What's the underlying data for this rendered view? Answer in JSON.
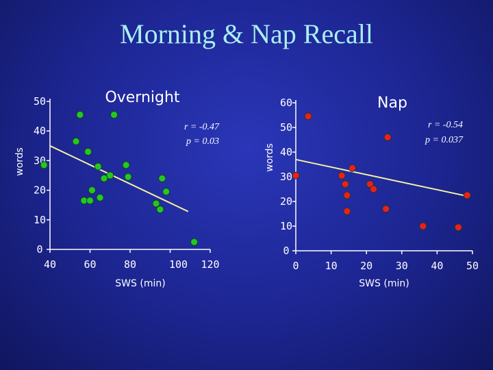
{
  "title": "Morning & Nap Recall",
  "chart_data": [
    {
      "type": "scatter",
      "title": "Overnight",
      "xlabel": "SWS (min)",
      "ylabel": "words",
      "xlim": [
        40,
        120
      ],
      "ylim": [
        0,
        50
      ],
      "xticks": [
        40,
        60,
        80,
        100,
        120
      ],
      "yticks": [
        0,
        10,
        20,
        30,
        40,
        50
      ],
      "point_color": "#22c822",
      "annotation_r": "r = -0.47",
      "annotation_p": "p = 0.03",
      "trendline": {
        "x": [
          40,
          109
        ],
        "y": [
          35,
          12.8
        ]
      },
      "points": [
        {
          "x": 37,
          "y": 28.5
        },
        {
          "x": 55,
          "y": 45.5
        },
        {
          "x": 53,
          "y": 36.5
        },
        {
          "x": 59,
          "y": 33.0
        },
        {
          "x": 72,
          "y": 45.5
        },
        {
          "x": 64,
          "y": 28.0
        },
        {
          "x": 70,
          "y": 25.0
        },
        {
          "x": 67,
          "y": 24.0
        },
        {
          "x": 78,
          "y": 28.5
        },
        {
          "x": 79,
          "y": 24.5
        },
        {
          "x": 61,
          "y": 20.0
        },
        {
          "x": 57,
          "y": 16.5
        },
        {
          "x": 60,
          "y": 16.5
        },
        {
          "x": 65,
          "y": 17.5
        },
        {
          "x": 96,
          "y": 24.0
        },
        {
          "x": 98,
          "y": 19.5
        },
        {
          "x": 93,
          "y": 15.5
        },
        {
          "x": 95,
          "y": 13.5
        },
        {
          "x": 112,
          "y": 2.5
        }
      ]
    },
    {
      "type": "scatter",
      "title": "Nap",
      "xlabel": "SWS (min)",
      "ylabel": "words",
      "xlim": [
        0,
        50
      ],
      "ylim": [
        0,
        60
      ],
      "xticks": [
        0,
        10,
        20,
        30,
        40,
        50
      ],
      "yticks": [
        0,
        10,
        20,
        30,
        40,
        50,
        60
      ],
      "point_color": "#e82020",
      "annotation_r": "r = -0.54",
      "annotation_p": "p = 0.037",
      "trendline": {
        "x": [
          0,
          49
        ],
        "y": [
          37,
          22
        ]
      },
      "points": [
        {
          "x": 0,
          "y": 30.5
        },
        {
          "x": 3.5,
          "y": 54.5
        },
        {
          "x": 13,
          "y": 30.5
        },
        {
          "x": 14,
          "y": 27.0
        },
        {
          "x": 14.5,
          "y": 22.5
        },
        {
          "x": 16,
          "y": 33.5
        },
        {
          "x": 14.5,
          "y": 16.0
        },
        {
          "x": 21,
          "y": 27.0
        },
        {
          "x": 22,
          "y": 25.0
        },
        {
          "x": 26,
          "y": 46.0
        },
        {
          "x": 25.5,
          "y": 17.0
        },
        {
          "x": 36,
          "y": 10.0
        },
        {
          "x": 46,
          "y": 9.5
        },
        {
          "x": 48.5,
          "y": 22.5
        }
      ]
    }
  ]
}
